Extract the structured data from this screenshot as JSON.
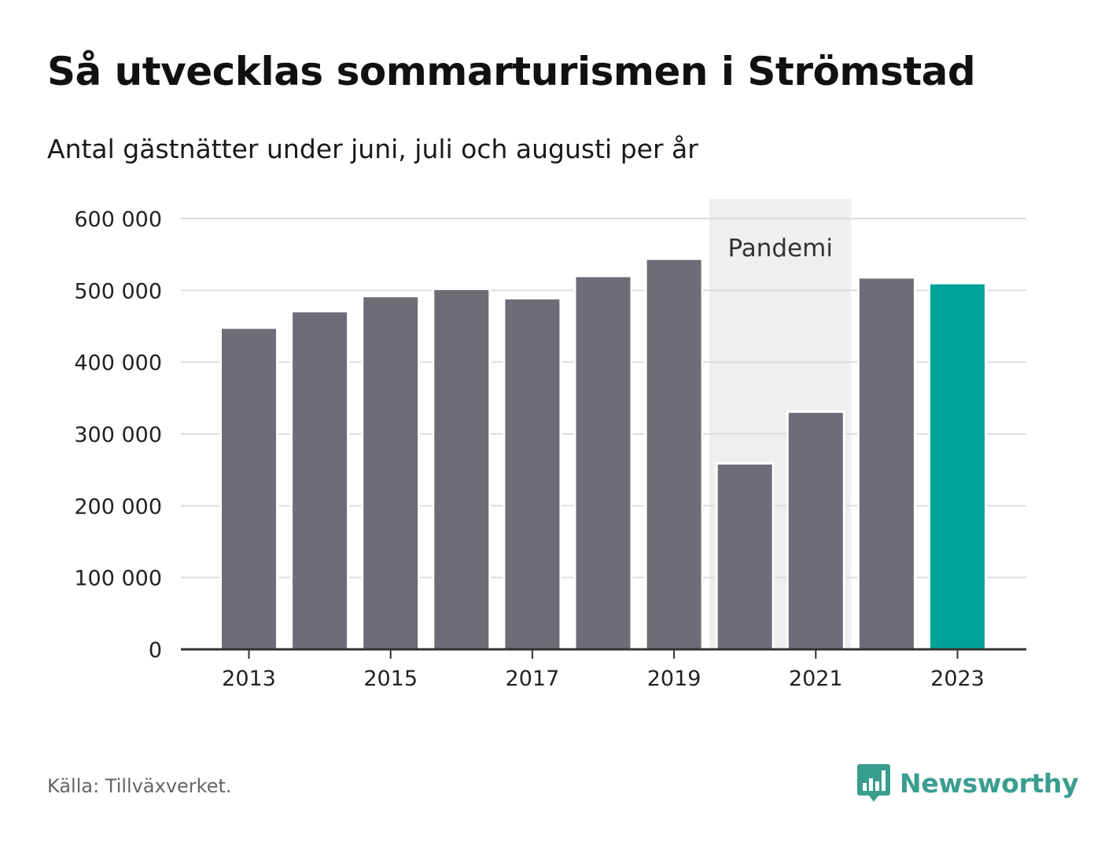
{
  "header": {
    "title": "Så utvecklas sommarturismen i Strömstad",
    "subtitle": "Antal gästnätter under juni, juli och augusti per år"
  },
  "footer": {
    "source": "Källa: Tillväxverket.",
    "brand": "Newsworthy",
    "brand_icon": "bar-chart-speech-bubble-icon"
  },
  "colors": {
    "bar": "#6e6d75",
    "highlight": "#00a398",
    "band": "#efefef",
    "grid": "#dddddd",
    "axis": "#333333",
    "brand": "#3a9e8f"
  },
  "chart_data": {
    "type": "bar",
    "x": [
      2013,
      2014,
      2015,
      2016,
      2017,
      2018,
      2019,
      2020,
      2021,
      2022,
      2023
    ],
    "values": [
      448000,
      471000,
      492000,
      502000,
      489000,
      520000,
      544000,
      259000,
      331000,
      518000,
      510000
    ],
    "highlight_x": 2023,
    "ylim": [
      0,
      600000
    ],
    "yticks": [
      0,
      100000,
      200000,
      300000,
      400000,
      500000,
      600000
    ],
    "ytick_labels": [
      "0",
      "100 000",
      "200 000",
      "300 000",
      "400 000",
      "500 000",
      "600 000"
    ],
    "xticks": [
      2013,
      2015,
      2017,
      2019,
      2021,
      2023
    ],
    "xtick_labels": [
      "2013",
      "2015",
      "2017",
      "2019",
      "2021",
      "2023"
    ],
    "grid": true,
    "legend": "none",
    "annotation": {
      "label": "Pandemi",
      "x_range": [
        2020,
        2021
      ]
    }
  }
}
